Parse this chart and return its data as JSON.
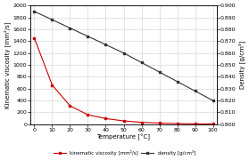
{
  "temperatures": [
    0,
    10,
    20,
    30,
    40,
    50,
    60,
    70,
    80,
    90,
    100
  ],
  "kinematic_viscosity": [
    1450,
    660,
    310,
    160,
    96,
    57,
    33,
    20,
    12,
    8,
    5
  ],
  "density": [
    0.895,
    0.888,
    0.881,
    0.874,
    0.867,
    0.86,
    0.852,
    0.844,
    0.836,
    0.828,
    0.82
  ],
  "viscosity_color": "#cc0000",
  "density_color": "#333333",
  "grid_color": "#d0d0d0",
  "background_color": "#ffffff",
  "xlabel": "Temperature [°C]",
  "ylabel_left": "Kinematic viscosity [mm²/s]",
  "ylabel_right": "Density [g/cm³]",
  "legend_viscosity": "kinematic viscosity [mm²/s]",
  "legend_density": "density [g/cm³]",
  "xlim": [
    -2,
    102
  ],
  "ylim_left": [
    0,
    2000
  ],
  "ylim_right": [
    0.8,
    0.9
  ],
  "yticks_left": [
    0,
    200,
    400,
    600,
    800,
    1000,
    1200,
    1400,
    1600,
    1800,
    2000
  ],
  "yticks_right": [
    0.8,
    0.81,
    0.82,
    0.83,
    0.84,
    0.85,
    0.86,
    0.87,
    0.88,
    0.89,
    0.9
  ],
  "xticks": [
    0,
    10,
    20,
    30,
    40,
    50,
    60,
    70,
    80,
    90,
    100
  ],
  "label_fontsize": 5,
  "tick_fontsize": 4.5,
  "legend_fontsize": 4.0,
  "linewidth": 0.8,
  "markersize": 2.0
}
